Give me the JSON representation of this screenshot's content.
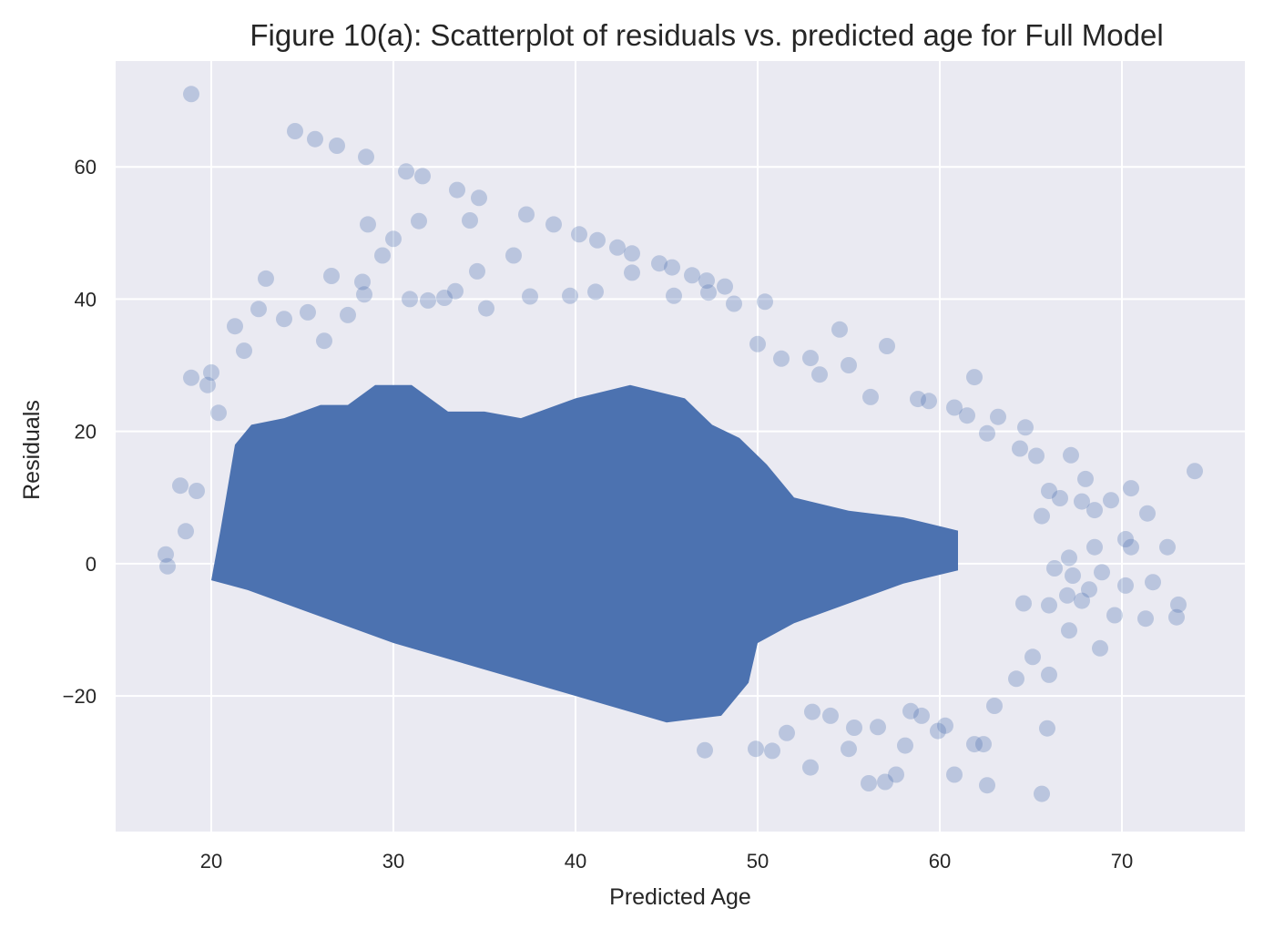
{
  "chart_data": {
    "type": "scatter",
    "title": "Figure 10(a): Scatterplot of residuals vs. predicted age for Full Model",
    "xlabel": "Predicted Age",
    "ylabel": "Residuals",
    "xlim": [
      14.75,
      76.75
    ],
    "ylim": [
      -40.5,
      76
    ],
    "xticks": [
      20,
      30,
      40,
      50,
      60,
      70
    ],
    "yticks": [
      -20,
      0,
      20,
      40,
      60
    ],
    "ytick_labels": [
      "−20",
      "0",
      "20",
      "40",
      "60"
    ],
    "grid": true,
    "background": "#eaeaf2",
    "point_color": "#4c72b0",
    "point_alpha": 0.3,
    "dense_region_note": "bulk of points form a dense band",
    "series": [
      {
        "points": [
          [
            18.9,
            71.0
          ],
          [
            24.6,
            65.4
          ],
          [
            25.7,
            64.2
          ],
          [
            26.9,
            63.2
          ],
          [
            28.5,
            61.5
          ],
          [
            30.7,
            59.3
          ],
          [
            31.6,
            58.6
          ],
          [
            33.5,
            56.5
          ],
          [
            34.7,
            55.3
          ],
          [
            37.3,
            52.8
          ],
          [
            38.8,
            51.3
          ],
          [
            40.2,
            49.8
          ],
          [
            41.2,
            48.9
          ],
          [
            42.3,
            47.8
          ],
          [
            43.1,
            46.9
          ],
          [
            44.6,
            45.4
          ],
          [
            45.3,
            44.8
          ],
          [
            46.4,
            43.6
          ],
          [
            47.2,
            42.8
          ],
          [
            48.2,
            41.9
          ],
          [
            50.4,
            39.6
          ],
          [
            28.6,
            51.3
          ],
          [
            30.0,
            49.1
          ],
          [
            31.4,
            51.8
          ],
          [
            34.2,
            51.9
          ],
          [
            29.4,
            46.6
          ],
          [
            36.6,
            46.6
          ],
          [
            34.6,
            44.2
          ],
          [
            23.0,
            43.1
          ],
          [
            26.6,
            43.5
          ],
          [
            28.3,
            42.6
          ],
          [
            28.4,
            40.7
          ],
          [
            33.4,
            41.2
          ],
          [
            17.5,
            1.4
          ],
          [
            17.6,
            -0.4
          ],
          [
            18.3,
            11.8
          ],
          [
            18.9,
            28.1
          ],
          [
            20.0,
            28.9
          ],
          [
            19.8,
            27.0
          ],
          [
            20.4,
            22.8
          ],
          [
            19.2,
            11.0
          ],
          [
            18.6,
            4.9
          ],
          [
            54.5,
            35.4
          ],
          [
            57.1,
            32.9
          ],
          [
            61.9,
            28.2
          ],
          [
            59.4,
            24.6
          ],
          [
            63.2,
            22.2
          ],
          [
            64.7,
            20.6
          ],
          [
            74.0,
            14.0
          ],
          [
            70.5,
            11.4
          ],
          [
            71.4,
            7.6
          ],
          [
            70.2,
            3.7
          ],
          [
            70.5,
            2.5
          ],
          [
            72.5,
            2.5
          ],
          [
            71.7,
            -2.8
          ],
          [
            70.2,
            -3.3
          ],
          [
            73.1,
            -6.2
          ],
          [
            73.0,
            -8.1
          ],
          [
            71.3,
            -8.3
          ],
          [
            69.6,
            -7.8
          ],
          [
            68.8,
            -12.8
          ],
          [
            67.1,
            -10.1
          ],
          [
            66.0,
            -16.8
          ],
          [
            65.6,
            -34.8
          ],
          [
            62.6,
            -33.5
          ],
          [
            60.8,
            -31.9
          ],
          [
            56.1,
            -33.2
          ],
          [
            57.0,
            -33.0
          ],
          [
            57.6,
            -31.9
          ],
          [
            52.9,
            -30.8
          ],
          [
            65.9,
            -24.9
          ],
          [
            61.9,
            -27.3
          ],
          [
            59.9,
            -25.3
          ],
          [
            55.0,
            -28.0
          ],
          [
            49.9,
            -28.0
          ],
          [
            47.1,
            -28.2
          ],
          [
            58.1,
            -27.5
          ],
          [
            30.9,
            40.0
          ],
          [
            31.9,
            39.8
          ],
          [
            32.8,
            40.2
          ],
          [
            35.1,
            38.6
          ],
          [
            37.5,
            40.4
          ],
          [
            39.7,
            40.5
          ],
          [
            41.1,
            41.1
          ],
          [
            43.1,
            44.0
          ],
          [
            45.4,
            40.5
          ],
          [
            47.3,
            41.0
          ],
          [
            48.7,
            39.3
          ],
          [
            25.3,
            38.0
          ],
          [
            22.6,
            38.5
          ],
          [
            21.3,
            35.9
          ],
          [
            24.0,
            37.0
          ],
          [
            27.5,
            37.6
          ],
          [
            21.8,
            32.2
          ],
          [
            26.2,
            33.7
          ],
          [
            50.0,
            33.2
          ],
          [
            51.3,
            31.0
          ],
          [
            52.9,
            31.1
          ],
          [
            55.0,
            30.0
          ],
          [
            53.4,
            28.6
          ],
          [
            56.2,
            25.2
          ],
          [
            58.8,
            24.9
          ],
          [
            60.8,
            23.6
          ],
          [
            61.5,
            22.4
          ],
          [
            62.6,
            19.7
          ],
          [
            64.4,
            17.4
          ],
          [
            65.3,
            16.3
          ],
          [
            67.2,
            16.4
          ],
          [
            68.0,
            12.8
          ],
          [
            66.0,
            11.0
          ],
          [
            66.6,
            9.9
          ],
          [
            67.8,
            9.4
          ],
          [
            69.4,
            9.6
          ],
          [
            68.5,
            8.1
          ],
          [
            65.6,
            7.2
          ],
          [
            67.1,
            0.9
          ],
          [
            68.5,
            2.5
          ],
          [
            66.3,
            -0.7
          ],
          [
            67.3,
            -1.8
          ],
          [
            68.9,
            -1.3
          ],
          [
            68.2,
            -3.9
          ],
          [
            67.0,
            -4.8
          ],
          [
            67.8,
            -5.6
          ],
          [
            66.0,
            -6.3
          ],
          [
            64.6,
            -6.0
          ],
          [
            65.1,
            -14.1
          ],
          [
            64.2,
            -17.4
          ],
          [
            63.0,
            -21.5
          ],
          [
            62.4,
            -27.3
          ],
          [
            60.3,
            -24.5
          ],
          [
            59.0,
            -23.0
          ],
          [
            58.4,
            -22.3
          ],
          [
            56.6,
            -24.7
          ],
          [
            55.3,
            -24.8
          ],
          [
            54.0,
            -23.0
          ],
          [
            53.0,
            -22.4
          ],
          [
            51.6,
            -25.6
          ],
          [
            50.8,
            -28.3
          ]
        ]
      }
    ]
  }
}
